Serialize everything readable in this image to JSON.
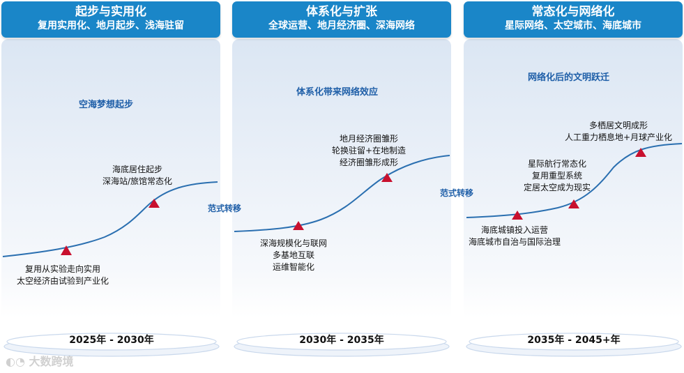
{
  "phases": [
    {
      "title": "起步与实用化",
      "subtitle": "复用实用化、地月起步、浅海驻留",
      "theme": "空海梦想起步",
      "years": "2025年 - 2030年",
      "milestone_low": [
        "复用从实验走向实用",
        "太空经济由试验到产业化"
      ],
      "milestone_high": [
        "海底居住起步",
        "深海站/旅馆常态化"
      ]
    },
    {
      "title": "体系化与扩张",
      "subtitle": "全球运营、地月经济圈、深海网络",
      "theme": "体系化带来网络效应",
      "years": "2030年 - 2035年",
      "milestone_low": [
        "深海规模化与联网",
        "多基地互联",
        "运维智能化"
      ],
      "milestone_high": [
        "地月经济圈雏形",
        "轮换驻留+在地制造",
        "经济圈雏形成形"
      ]
    },
    {
      "title": "常态化与网络化",
      "subtitle": "星际网络、太空城市、海底城市",
      "theme": "网络化后的文明跃迁",
      "years": "2035年 - 2045+年",
      "milestone_low": [
        "海底城镇投入运营",
        "海底城市自治与国际治理"
      ],
      "milestone_mid": [
        "星际航行常态化",
        "复用重型系统",
        "定居太空成为现实"
      ],
      "milestone_high": [
        "多栖居文明成形",
        "人工重力栖息地+月球产业化"
      ]
    }
  ],
  "transitions": [
    "范式转移",
    "范式转移"
  ],
  "watermark": "大数跨境",
  "colors": {
    "header": "#1a86c8",
    "curve": "#2a6fb0",
    "marker": "#c8102e",
    "accent_text": "#1f5fa8"
  }
}
